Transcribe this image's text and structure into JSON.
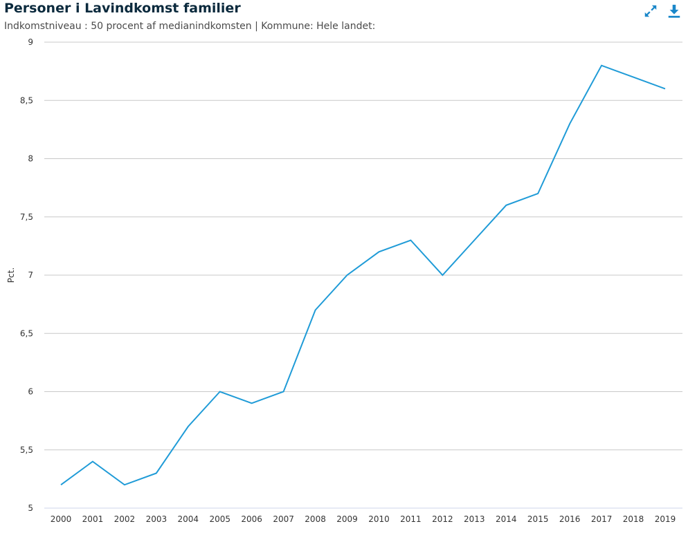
{
  "header": {
    "title": "Personer i Lavindkomst familier",
    "subtitle": "Indkomstniveau : 50 procent af medianindkomsten | Kommune: Hele landet:"
  },
  "toolbar": {
    "expand_icon": "expand-icon",
    "download_icon": "download-icon",
    "accent_color": "#1a87c9"
  },
  "chart_data": {
    "type": "line",
    "title": "Personer i Lavindkomst familier",
    "subtitle": "Indkomstniveau : 50 procent af medianindkomsten | Kommune: Hele landet:",
    "xlabel": "",
    "ylabel": "Pct.",
    "categories": [
      "2000",
      "2001",
      "2002",
      "2003",
      "2004",
      "2005",
      "2006",
      "2007",
      "2008",
      "2009",
      "2010",
      "2011",
      "2012",
      "2013",
      "2014",
      "2015",
      "2016",
      "2017",
      "2018",
      "2019"
    ],
    "series": [
      {
        "color": "#1f9bd7",
        "values": [
          5.2,
          5.4,
          5.2,
          5.3,
          5.7,
          6.0,
          5.9,
          6.0,
          6.7,
          7.0,
          7.2,
          7.3,
          7.0,
          7.3,
          7.6,
          7.7,
          8.3,
          8.8,
          8.7,
          8.6
        ]
      }
    ],
    "ylim": [
      5,
      9
    ],
    "yticks": [
      5,
      5.5,
      6,
      6.5,
      7,
      7.5,
      8,
      8.5,
      9
    ],
    "ytick_labels": [
      "5",
      "5,5",
      "6",
      "6,5",
      "7",
      "7,5",
      "8",
      "8,5",
      "9"
    ],
    "grid": true,
    "legend": "none"
  }
}
